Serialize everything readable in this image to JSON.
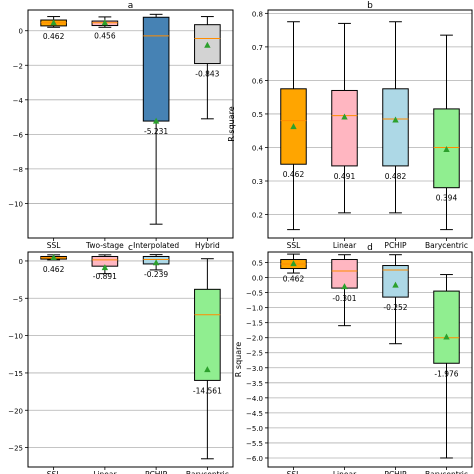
{
  "chart_data": [
    {
      "type": "box",
      "title": "a",
      "ylabel": "",
      "categories": [
        "SSL",
        "Two-stage",
        "Interpolated",
        "Hybrid"
      ],
      "ylim": [
        -12,
        1.2
      ],
      "yticks": [
        0,
        -2,
        -4,
        -6,
        -8,
        -10
      ],
      "ytick_labels": [
        "0",
        "−2",
        "−4",
        "−6",
        "−8",
        "−10"
      ],
      "grid": true,
      "boxes": [
        {
          "whislo": 0.2,
          "q1": 0.28,
          "median": 0.46,
          "q3": 0.62,
          "whishi": 0.82,
          "mean": 0.46,
          "color": "#FFA500",
          "label": "0.462"
        },
        {
          "whislo": 0.2,
          "q1": 0.3,
          "median": 0.46,
          "q3": 0.56,
          "whishi": 0.8,
          "mean": 0.46,
          "color": "#FFB6C1",
          "label": "0.456"
        },
        {
          "whislo": -11.2,
          "q1": -5.23,
          "median": -0.3,
          "q3": 0.78,
          "whishi": 0.95,
          "mean": -5.23,
          "color": "#4682B4",
          "label": "-5.231"
        },
        {
          "whislo": -5.1,
          "q1": -1.9,
          "median": -0.45,
          "q3": 0.35,
          "whishi": 0.82,
          "mean": -0.843,
          "color": "#D3D3D3",
          "label": "-0.843"
        }
      ]
    },
    {
      "type": "box",
      "title": "b",
      "ylabel": "R square",
      "categories": [
        "SSL",
        "Linear",
        "PCHIP",
        "Barycentric"
      ],
      "ylim": [
        0.13,
        0.81
      ],
      "yticks": [
        0.2,
        0.3,
        0.4,
        0.5,
        0.6,
        0.7,
        0.8
      ],
      "ytick_labels": [
        "0.2",
        "0.3",
        "0.4",
        "0.5",
        "0.6",
        "0.7",
        "0.8"
      ],
      "grid": true,
      "boxes": [
        {
          "whislo": 0.155,
          "q1": 0.35,
          "median": 0.48,
          "q3": 0.575,
          "whishi": 0.775,
          "mean": 0.462,
          "color": "#FFA500",
          "label": "0.462"
        },
        {
          "whislo": 0.205,
          "q1": 0.345,
          "median": 0.495,
          "q3": 0.57,
          "whishi": 0.77,
          "mean": 0.491,
          "color": "#FFB6C1",
          "label": "0.491"
        },
        {
          "whislo": 0.205,
          "q1": 0.345,
          "median": 0.485,
          "q3": 0.575,
          "whishi": 0.775,
          "mean": 0.482,
          "color": "#ADD8E6",
          "label": "0.482"
        },
        {
          "whislo": 0.155,
          "q1": 0.28,
          "median": 0.4,
          "q3": 0.515,
          "whishi": 0.735,
          "mean": 0.394,
          "color": "#90EE90",
          "label": "0.394"
        }
      ]
    },
    {
      "type": "box",
      "title": "c",
      "ylabel": "",
      "categories": [
        "SSL",
        "Linear",
        "PCHIP",
        "Barycentric"
      ],
      "ylim": [
        -27.6,
        1.2
      ],
      "yticks": [
        0,
        -5,
        -10,
        -15,
        -20,
        -25
      ],
      "ytick_labels": [
        "0",
        "−5",
        "−10",
        "−15",
        "−20",
        "−25"
      ],
      "grid": true,
      "boxes": [
        {
          "whislo": 0.15,
          "q1": 0.25,
          "median": 0.45,
          "q3": 0.6,
          "whishi": 0.82,
          "mean": 0.462,
          "color": "#FFA500",
          "label": "0.462"
        },
        {
          "whislo": -1.7,
          "q1": -0.7,
          "median": 0.15,
          "q3": 0.6,
          "whishi": 0.82,
          "mean": -0.891,
          "color": "#FFB6C1",
          "label": "-0.891"
        },
        {
          "whislo": -1.2,
          "q1": -0.4,
          "median": 0.2,
          "q3": 0.6,
          "whishi": 0.85,
          "mean": -0.239,
          "color": "#ADD8E6",
          "label": "-0.239"
        },
        {
          "whislo": -26.5,
          "q1": -16.0,
          "median": -7.2,
          "q3": -3.8,
          "whishi": 0.3,
          "mean": -14.561,
          "color": "#90EE90",
          "label": "-14.561"
        }
      ]
    },
    {
      "type": "box",
      "title": "d",
      "ylabel": "R square",
      "categories": [
        "SSL",
        "Linear",
        "PCHIP",
        "Barycentric"
      ],
      "ylim": [
        -6.3,
        0.85
      ],
      "yticks": [
        0.5,
        0,
        -0.5,
        -1,
        -1.5,
        -2,
        -2.5,
        -3,
        -3.5,
        -4,
        -4.5,
        -5,
        -5.5,
        -6
      ],
      "ytick_labels": [
        "0.5",
        "0.0",
        "−0.5",
        "−1.0",
        "−1.5",
        "−2.0",
        "−2.5",
        "−3.0",
        "−3.5",
        "−4.0",
        "−4.5",
        "−5.0",
        "−5.5",
        "−6.0"
      ],
      "grid": true,
      "boxes": [
        {
          "whislo": 0.15,
          "q1": 0.3,
          "median": 0.45,
          "q3": 0.6,
          "whishi": 0.78,
          "mean": 0.462,
          "color": "#FFA500",
          "label": "0.462"
        },
        {
          "whislo": -1.6,
          "q1": -0.35,
          "median": 0.22,
          "q3": 0.6,
          "whishi": 0.76,
          "mean": -0.301,
          "color": "#FFB6C1",
          "label": "-0.301"
        },
        {
          "whislo": -2.2,
          "q1": -0.65,
          "median": 0.25,
          "q3": 0.4,
          "whishi": 0.76,
          "mean": -0.252,
          "color": "#ADD8E6",
          "label": "-0.252"
        },
        {
          "whislo": -6.0,
          "q1": -2.85,
          "median": -2.0,
          "q3": -0.45,
          "whishi": 0.1,
          "mean": -1.976,
          "color": "#90EE90",
          "label": "-1.976"
        }
      ]
    }
  ]
}
